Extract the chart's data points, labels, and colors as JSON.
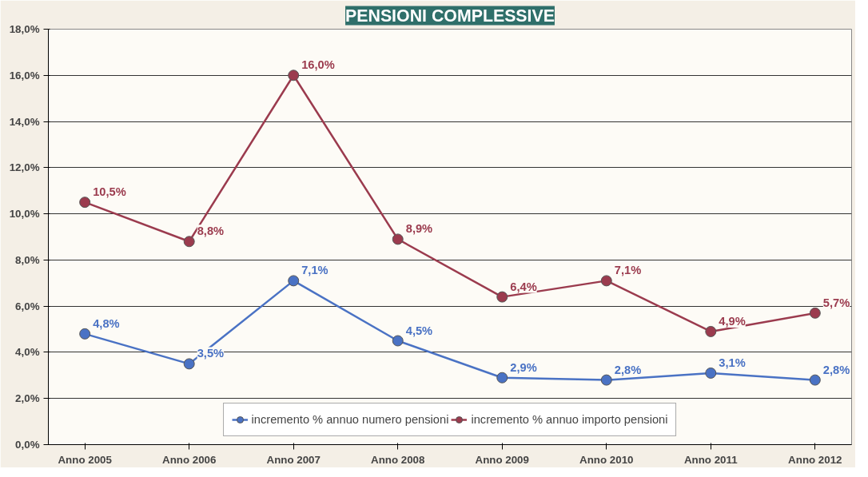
{
  "chart_data": {
    "type": "line",
    "title": "PENSIONI COMPLESSIVE",
    "categories": [
      "Anno 2005",
      "Anno 2006",
      "Anno 2007",
      "Anno 2008",
      "Anno 2009",
      "Anno 2010",
      "Anno 2011",
      "Anno 2012"
    ],
    "series": [
      {
        "name": "incremento % annuo numero pensioni",
        "color": "#4a72c4",
        "values": [
          4.8,
          3.5,
          7.1,
          4.5,
          2.9,
          2.8,
          3.1,
          2.8
        ],
        "value_labels": [
          "4,8%",
          "3,5%",
          "7,1%",
          "4,5%",
          "2,9%",
          "2,8%",
          "3,1%",
          "2,8%"
        ]
      },
      {
        "name": "incremento % annuo importo pensioni",
        "color": "#9b3b4e",
        "values": [
          10.5,
          8.8,
          16.0,
          8.9,
          6.4,
          7.1,
          4.9,
          5.7
        ],
        "value_labels": [
          "10,5%",
          "8,8%",
          "16,0%",
          "8,9%",
          "6,4%",
          "7,1%",
          "4,9%",
          "5,7%"
        ]
      }
    ],
    "ylim": [
      0,
      18
    ],
    "yticks": [
      {
        "value": 0,
        "label": "0,0%"
      },
      {
        "value": 2,
        "label": "2,0%"
      },
      {
        "value": 4,
        "label": "4,0%"
      },
      {
        "value": 6,
        "label": "6,0%"
      },
      {
        "value": 8,
        "label": "8,0%"
      },
      {
        "value": 10,
        "label": "10,0%"
      },
      {
        "value": 12,
        "label": "12,0%"
      },
      {
        "value": 14,
        "label": "14,0%"
      },
      {
        "value": 16,
        "label": "16,0%"
      },
      {
        "value": 18,
        "label": "18,0%"
      }
    ],
    "grid": "y",
    "legend": "bottom",
    "marker": "circle",
    "line_style": "solid"
  }
}
